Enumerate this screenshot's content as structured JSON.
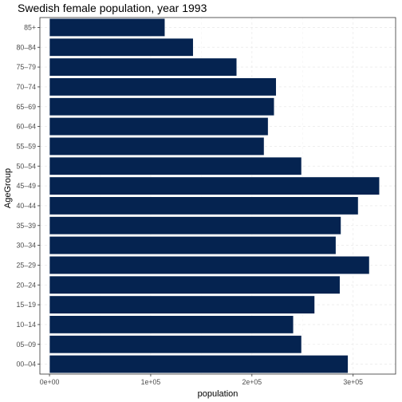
{
  "chart_data": {
    "type": "bar",
    "orientation": "horizontal",
    "title": "Swedish female population, year 1993",
    "xlabel": "population",
    "ylabel": "AgeGroup",
    "categories": [
      "00–04",
      "05–09",
      "10–14",
      "15–19",
      "20–24",
      "25–29",
      "30–34",
      "35–39",
      "40–44",
      "45–49",
      "50–54",
      "55–59",
      "60–64",
      "65–69",
      "70–74",
      "75–79",
      "80–84",
      "85+"
    ],
    "values": [
      295000,
      249000,
      241000,
      262000,
      287000,
      316000,
      283000,
      288000,
      305000,
      326000,
      249000,
      212000,
      216000,
      222000,
      224000,
      185000,
      142000,
      114000
    ],
    "xlim": [
      -9500,
      342000
    ],
    "xticks": [
      0,
      100000,
      200000,
      300000
    ],
    "xtick_labels": [
      "0e+00",
      "1e+05",
      "2e+05",
      "3e+05"
    ],
    "grid": true,
    "legend": "none",
    "colors": {
      "bar_fill": "#052350",
      "bar_outline": "#ffffff",
      "grid_major": "#ebebeb",
      "grid_minor": "#f2f2f2",
      "panel_border": "#333333",
      "tick_label": "#4d4d4d"
    }
  }
}
